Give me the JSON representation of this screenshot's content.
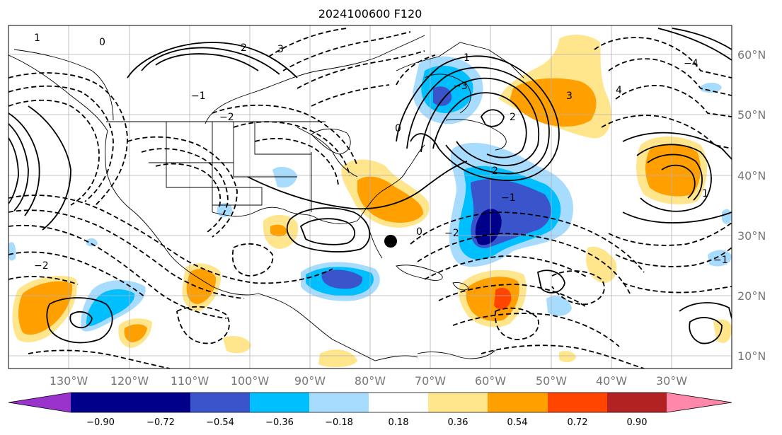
{
  "title": "2024100600 F120",
  "map": {
    "lon_labels": [
      "130°W",
      "120°W",
      "110°W",
      "100°W",
      "90°W",
      "80°W",
      "70°W",
      "60°W",
      "50°W",
      "40°W",
      "30°W"
    ],
    "lat_labels": [
      "60°N",
      "50°N",
      "40°N",
      "30°N",
      "20°N",
      "10°N"
    ],
    "contour_labels": [
      "1",
      "0",
      "2",
      "3",
      "−1",
      "−2",
      "−3",
      "1",
      "0",
      "−1",
      "2",
      "−2",
      "0",
      "1",
      "−1",
      "−2",
      "4",
      "−4",
      "3",
      "2"
    ]
  },
  "colorbar": {
    "ticks": [
      "−0.90",
      "−0.72",
      "−0.54",
      "−0.36",
      "−0.18",
      "0.18",
      "0.36",
      "0.54",
      "0.72",
      "0.90"
    ],
    "colors": {
      "min_ext": "#9933cc",
      "b1": "#00008b",
      "b2": "#3a55cc",
      "b3": "#00bfff",
      "b4": "#a8dcff",
      "mid": "#ffffff",
      "y1": "#ffe68c",
      "y2": "#ffa000",
      "y3": "#ff4500",
      "y4": "#b22222",
      "max_ext": "#ff88aa"
    }
  }
}
